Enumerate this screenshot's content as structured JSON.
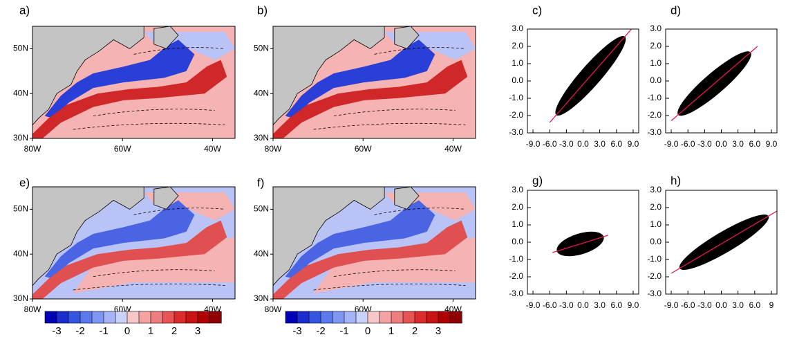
{
  "chart_data": [
    {
      "type": "map",
      "label": "a)",
      "xlim": [
        -80,
        -35
      ],
      "ylim": [
        30,
        55
      ],
      "xticks": [
        {
          "value": -80,
          "label": "80W"
        },
        {
          "value": -60,
          "label": "60W"
        },
        {
          "value": -40,
          "label": "40W"
        }
      ],
      "yticks": [
        {
          "value": 30,
          "label": "30N"
        },
        {
          "value": 40,
          "label": "40N"
        },
        {
          "value": 50,
          "label": "50N"
        }
      ]
    },
    {
      "type": "map",
      "label": "b)",
      "xlim": [
        -80,
        -35
      ],
      "ylim": [
        30,
        55
      ],
      "xticks": [
        {
          "value": -80,
          "label": "80W"
        },
        {
          "value": -60,
          "label": "60W"
        },
        {
          "value": -40,
          "label": "40W"
        }
      ],
      "yticks": [
        {
          "value": 30,
          "label": "30N"
        },
        {
          "value": 40,
          "label": "40N"
        },
        {
          "value": 50,
          "label": "50N"
        }
      ]
    },
    {
      "type": "scatter",
      "label": "c)",
      "xlim": [
        -10,
        10
      ],
      "ylim": [
        -3,
        3
      ],
      "xticks": [
        {
          "value": -9,
          "label": "-9.0"
        },
        {
          "value": -6,
          "label": "-6.0"
        },
        {
          "value": -3,
          "label": "-3.0"
        },
        {
          "value": 0,
          "label": "0.0"
        },
        {
          "value": 3,
          "label": "3.0"
        },
        {
          "value": 6,
          "label": "6.0"
        },
        {
          "value": 9,
          "label": "9.0"
        }
      ],
      "yticks": [
        {
          "value": 3,
          "label": "3.0"
        },
        {
          "value": 2,
          "label": "2.0"
        },
        {
          "value": 1,
          "label": "1.0"
        },
        {
          "value": 0,
          "label": "0.0"
        },
        {
          "value": -1,
          "label": "-1.0"
        },
        {
          "value": -2,
          "label": "-2.0"
        },
        {
          "value": -3,
          "label": "-3.0"
        }
      ],
      "fit": {
        "x": [
          -6,
          8.7
        ],
        "y": [
          -2.4,
          3
        ],
        "color": "#e8174a"
      }
    },
    {
      "type": "scatter",
      "label": "d)",
      "xlim": [
        -10,
        10
      ],
      "ylim": [
        -3,
        3
      ],
      "xticks": [
        {
          "value": -9,
          "label": "-9.0"
        },
        {
          "value": -6,
          "label": "-6.0"
        },
        {
          "value": -3,
          "label": "-3.0"
        },
        {
          "value": 0,
          "label": "0.0"
        },
        {
          "value": 3,
          "label": "3.0"
        },
        {
          "value": 6,
          "label": "6.0"
        },
        {
          "value": 9,
          "label": "9.0"
        }
      ],
      "yticks": [
        {
          "value": 3,
          "label": "3.0"
        },
        {
          "value": 2,
          "label": "2.0"
        },
        {
          "value": 1,
          "label": "1.0"
        },
        {
          "value": 0,
          "label": "0.0"
        },
        {
          "value": -1,
          "label": "-1.0"
        },
        {
          "value": -2,
          "label": "-2.0"
        },
        {
          "value": -3,
          "label": "-3.0"
        }
      ],
      "fit": {
        "x": [
          -9,
          6.5
        ],
        "y": [
          -2.3,
          2
        ],
        "color": "#e8174a"
      }
    },
    {
      "type": "map",
      "label": "e)",
      "xlim": [
        -80,
        -35
      ],
      "ylim": [
        30,
        55
      ],
      "xticks": [
        {
          "value": -80,
          "label": "80W"
        },
        {
          "value": -60,
          "label": "60W"
        },
        {
          "value": -40,
          "label": "40W"
        }
      ],
      "yticks": [
        {
          "value": 30,
          "label": "30N"
        },
        {
          "value": 40,
          "label": "40N"
        },
        {
          "value": 50,
          "label": "50N"
        }
      ],
      "colorbar": {
        "range": [
          -3.5,
          4
        ],
        "ticks": [
          -3,
          -2,
          -1,
          0,
          1,
          2,
          3
        ],
        "colors": [
          "#0000b4",
          "#1a2ed0",
          "#3355e0",
          "#5b78ec",
          "#7f96f2",
          "#a5b3f7",
          "#c9d2fa",
          "#f8c8c8",
          "#f4a3a3",
          "#ee7d7d",
          "#e65454",
          "#dc2b2b",
          "#c81414",
          "#b00000",
          "#8f0000"
        ]
      }
    },
    {
      "type": "map",
      "label": "f)",
      "xlim": [
        -80,
        -35
      ],
      "ylim": [
        30,
        55
      ],
      "xticks": [
        {
          "value": -80,
          "label": "80W"
        },
        {
          "value": -60,
          "label": "60W"
        },
        {
          "value": -40,
          "label": "40W"
        }
      ],
      "yticks": [
        {
          "value": 30,
          "label": "30N"
        },
        {
          "value": 40,
          "label": "40N"
        },
        {
          "value": 50,
          "label": "50N"
        }
      ],
      "colorbar": {
        "range": [
          -3.5,
          4
        ],
        "ticks": [
          -3,
          -2,
          -1,
          0,
          1,
          2,
          3
        ],
        "colors": [
          "#0000b4",
          "#1a2ed0",
          "#3355e0",
          "#5b78ec",
          "#7f96f2",
          "#a5b3f7",
          "#c9d2fa",
          "#f8c8c8",
          "#f4a3a3",
          "#ee7d7d",
          "#e65454",
          "#dc2b2b",
          "#c81414",
          "#b00000",
          "#8f0000"
        ]
      }
    },
    {
      "type": "scatter",
      "label": "g)",
      "xlim": [
        -10,
        10
      ],
      "ylim": [
        -3,
        3
      ],
      "xticks": [
        {
          "value": -9,
          "label": "-9.0"
        },
        {
          "value": -6,
          "label": "-6.0"
        },
        {
          "value": -3,
          "label": "-3.0"
        },
        {
          "value": 0,
          "label": "0.0"
        },
        {
          "value": 3,
          "label": "3.0"
        },
        {
          "value": 6,
          "label": "6.0"
        },
        {
          "value": 9,
          "label": "9.0"
        }
      ],
      "yticks": [
        {
          "value": 3,
          "label": "3.0"
        },
        {
          "value": 2,
          "label": "2.0"
        },
        {
          "value": 1,
          "label": "1.0"
        },
        {
          "value": 0,
          "label": "0.0"
        },
        {
          "value": -1,
          "label": "-1.0"
        },
        {
          "value": -2,
          "label": "-2.0"
        },
        {
          "value": -3,
          "label": "-3.0"
        }
      ],
      "fit": {
        "x": [
          -5.5,
          4.5
        ],
        "y": [
          -0.6,
          0.4
        ],
        "color": "#e8174a"
      }
    },
    {
      "type": "scatter",
      "label": "h)",
      "xlim": [
        -10,
        10
      ],
      "ylim": [
        -3,
        3
      ],
      "xticks": [
        {
          "value": -9,
          "label": "-9.0"
        },
        {
          "value": -6,
          "label": "-6.0"
        },
        {
          "value": -3,
          "label": "-3.0"
        },
        {
          "value": 0,
          "label": "0.0"
        },
        {
          "value": 3,
          "label": "3.0"
        },
        {
          "value": 6,
          "label": "6.0"
        },
        {
          "value": 9,
          "label": "9"
        }
      ],
      "yticks": [
        {
          "value": 3,
          "label": "3.0"
        },
        {
          "value": 2,
          "label": "2.0"
        },
        {
          "value": 1,
          "label": "1.0"
        },
        {
          "value": 0,
          "label": "0.0"
        },
        {
          "value": -1,
          "label": "-1.0"
        },
        {
          "value": -2,
          "label": "-2.0"
        },
        {
          "value": -3,
          "label": "-3.0"
        }
      ],
      "fit": {
        "x": [
          -9,
          10
        ],
        "y": [
          -1.8,
          1.8
        ],
        "color": "#e8174a"
      }
    }
  ]
}
